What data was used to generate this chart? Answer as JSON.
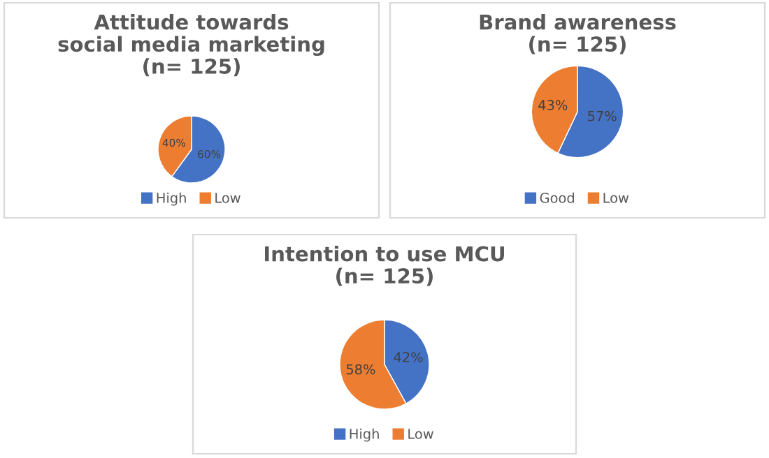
{
  "chart_data": [
    {
      "type": "pie",
      "title": "Attitude towards\nsocial media marketing\n(n= 125)",
      "categories": [
        "High",
        "Low"
      ],
      "values": [
        60,
        40
      ],
      "value_labels": [
        "60%",
        "40%"
      ],
      "colors": [
        "#4472c4",
        "#ed7d31"
      ],
      "legend": "bottom"
    },
    {
      "type": "pie",
      "title": "Brand awareness\n(n= 125)",
      "categories": [
        "Good",
        "Low"
      ],
      "values": [
        57,
        43
      ],
      "value_labels": [
        "57%",
        "43%"
      ],
      "colors": [
        "#4472c4",
        "#ed7d31"
      ],
      "legend": "bottom"
    },
    {
      "type": "pie",
      "title": "Intention to use MCU\n(n= 125)",
      "categories": [
        "High",
        "Low"
      ],
      "values": [
        42,
        58
      ],
      "value_labels": [
        "42%",
        "58%"
      ],
      "colors": [
        "#4472c4",
        "#ed7d31"
      ],
      "legend": "bottom"
    }
  ]
}
